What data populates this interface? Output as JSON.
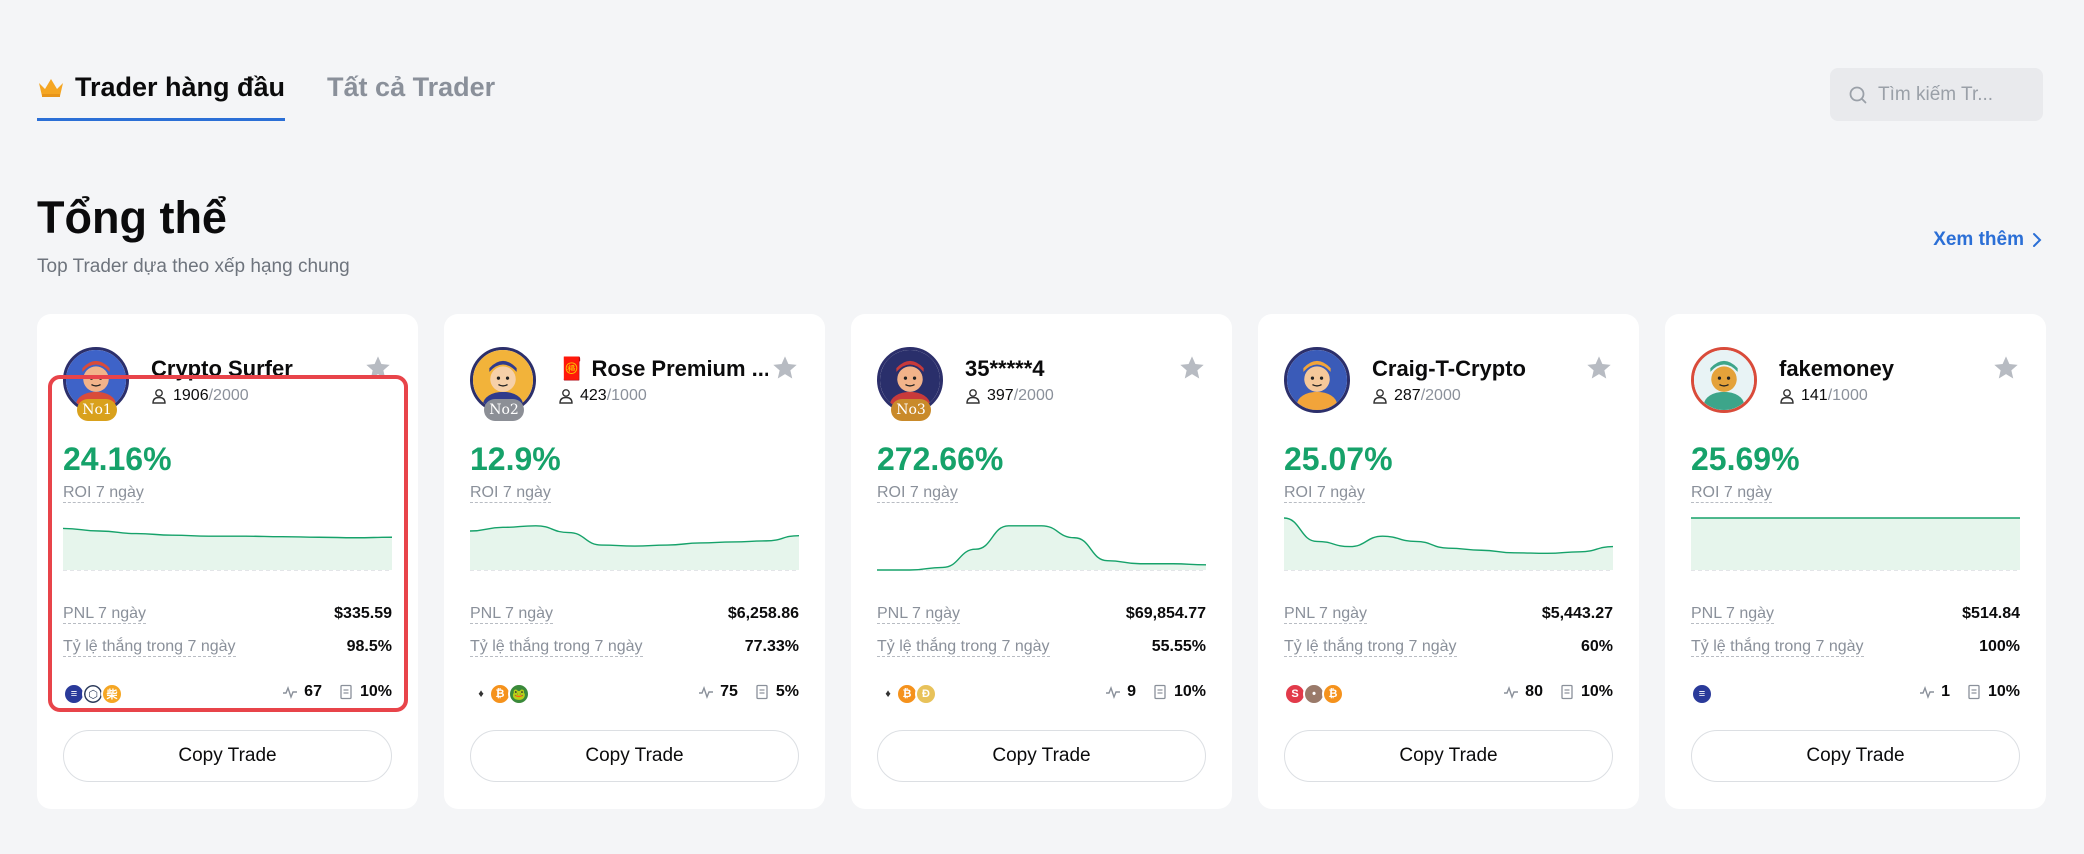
{
  "tabs": [
    {
      "label": "Trader hàng đầu",
      "active": true
    },
    {
      "label": "Tất cả Trader",
      "active": false
    }
  ],
  "search": {
    "placeholder": "Tìm kiếm Tr..."
  },
  "section": {
    "title": "Tổng thể",
    "subtitle": "Top Trader dựa theo xếp hạng chung",
    "more_label": "Xem thêm"
  },
  "labels": {
    "roi": "ROI 7 ngày",
    "pnl": "PNL 7 ngày",
    "winrate": "Tỷ lệ thắng trong 7 ngày",
    "copy": "Copy Trade"
  },
  "colors": {
    "accent": "#2b6fd6",
    "positive": "#16a26a",
    "highlight": "#e8444a"
  },
  "traders": [
    {
      "name": "Crypto Surfer",
      "rank": "No1",
      "followers": "1906",
      "capacity": "/2000",
      "roi": "24.16%",
      "pnl": "$335.59",
      "winrate": "98.5%",
      "trades": "67",
      "share": "10%",
      "spark": [
        0.8,
        0.75,
        0.7,
        0.67,
        0.65,
        0.65,
        0.64,
        0.63,
        0.62,
        0.63
      ],
      "coins": [
        "sol",
        "chainlink",
        "shib"
      ]
    },
    {
      "name": "🧧 Rose Premium ...",
      "rank": "No2",
      "followers": "423",
      "capacity": "/1000",
      "roi": "12.9%",
      "pnl": "$6,258.86",
      "winrate": "77.33%",
      "trades": "75",
      "share": "5%",
      "spark": [
        0.75,
        0.82,
        0.85,
        0.72,
        0.48,
        0.46,
        0.48,
        0.52,
        0.54,
        0.56,
        0.66
      ],
      "coins": [
        "eth",
        "btc",
        "pepe"
      ]
    },
    {
      "name": "35*****4",
      "rank": "No3",
      "followers": "397",
      "capacity": "/2000",
      "roi": "272.66%",
      "pnl": "$69,854.77",
      "winrate": "55.55%",
      "trades": "9",
      "share": "10%",
      "spark": [
        0.0,
        0.0,
        0.05,
        0.4,
        0.85,
        0.85,
        0.62,
        0.18,
        0.12,
        0.12,
        0.1
      ],
      "coins": [
        "eth",
        "btc",
        "doge"
      ]
    },
    {
      "name": "Craig-T-Crypto",
      "rank": "",
      "followers": "287",
      "capacity": "/2000",
      "roi": "25.07%",
      "pnl": "$5,443.27",
      "winrate": "60%",
      "trades": "80",
      "share": "10%",
      "spark": [
        1.0,
        0.55,
        0.45,
        0.65,
        0.55,
        0.42,
        0.38,
        0.33,
        0.32,
        0.35,
        0.45
      ],
      "coins": [
        "sei",
        "user",
        "btc"
      ]
    },
    {
      "name": "fakemoney",
      "rank": "",
      "followers": "141",
      "capacity": "/1000",
      "roi": "25.69%",
      "pnl": "$514.84",
      "winrate": "100%",
      "trades": "1",
      "share": "10%",
      "spark": [
        1.0,
        1.0,
        1.0,
        1.0,
        1.0,
        1.0,
        1.0,
        1.0,
        1.0,
        1.0,
        1.0
      ],
      "coins": [
        "sol"
      ]
    }
  ]
}
